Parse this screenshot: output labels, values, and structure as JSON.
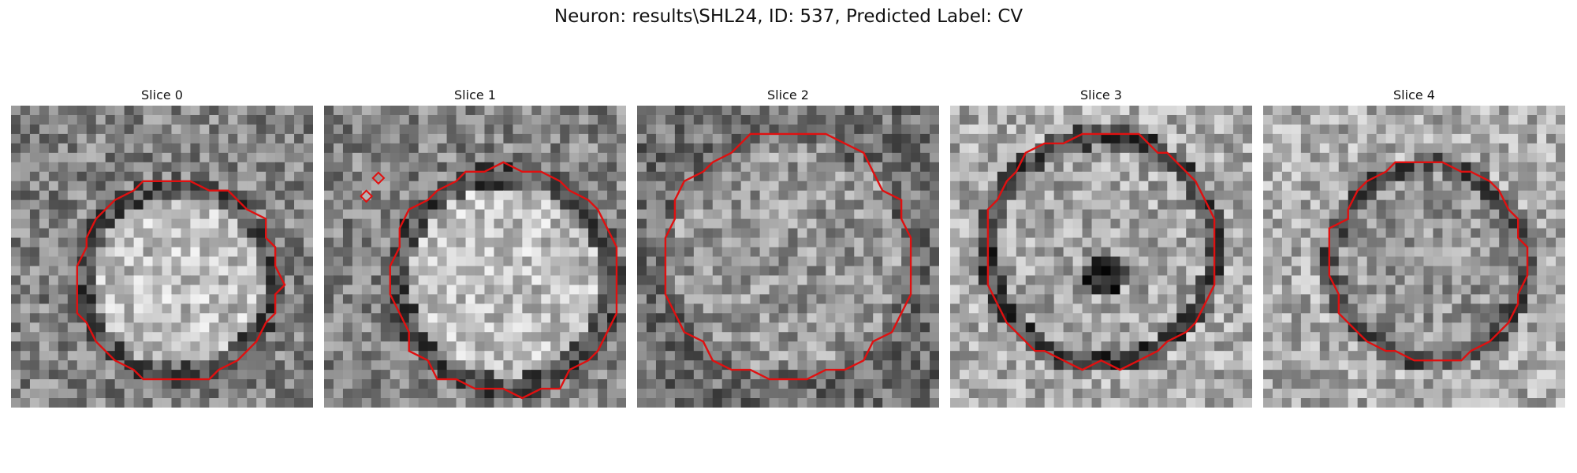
{
  "figure": {
    "title": "Neuron: results\\SHL24, ID: 537, Predicted Label: CV"
  },
  "slices": [
    {
      "label": "Slice 0",
      "center": [
        0.55,
        0.58
      ],
      "radius": 0.33,
      "interior": "bright"
    },
    {
      "label": "Slice 1",
      "center": [
        0.6,
        0.58
      ],
      "radius": 0.37,
      "interior": "bright"
    },
    {
      "label": "Slice 2",
      "center": [
        0.5,
        0.5
      ],
      "radius": 0.4,
      "interior": "textured"
    },
    {
      "label": "Slice 3",
      "center": [
        0.5,
        0.48
      ],
      "radius": 0.38,
      "interior": "dark-center"
    },
    {
      "label": "Slice 4",
      "center": [
        0.55,
        0.52
      ],
      "radius": 0.32,
      "interior": "mid"
    }
  ],
  "colors": {
    "contour": "#e01010"
  }
}
